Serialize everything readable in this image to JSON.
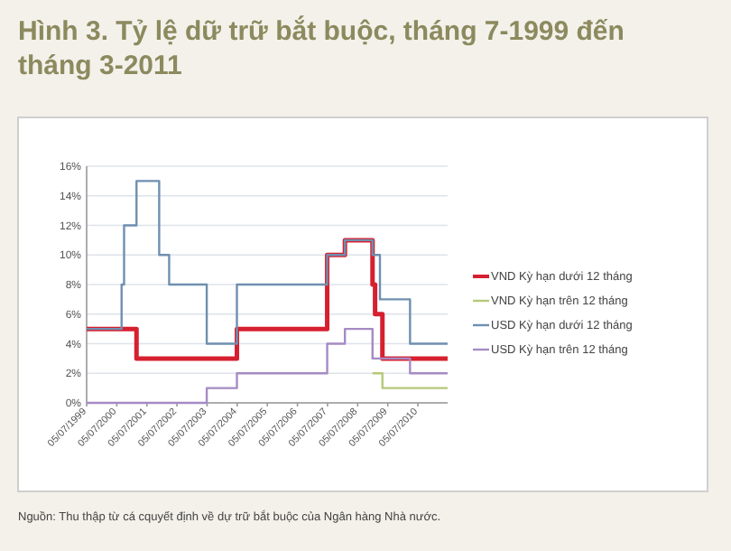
{
  "chart_data": {
    "type": "step",
    "title": "Hình 3. Tỷ lệ dữ trữ bắt buộc, tháng 7-1999  đến tháng 3-2011",
    "annotations": [
      "Nguồn: Thu thập từ cá cquyết định về dự trữ bắt buộc của Ngân hàng Nhà nước."
    ],
    "xlim": [
      "1999-07-05",
      "2011-07-01"
    ],
    "xticks": [
      {
        "value": "1999-07-05",
        "label": "05/07/1999"
      },
      {
        "value": "2000-07-05",
        "label": "05/07/2000"
      },
      {
        "value": "2001-07-05",
        "label": "05/07/2001"
      },
      {
        "value": "2002-07-05",
        "label": "05/07/2002"
      },
      {
        "value": "2003-07-05",
        "label": "05/07/2003"
      },
      {
        "value": "2004-07-05",
        "label": "05/07/2004"
      },
      {
        "value": "2005-07-05",
        "label": "05/07/2005"
      },
      {
        "value": "2006-07-05",
        "label": "05/07/2006"
      },
      {
        "value": "2007-07-05",
        "label": "05/07/2007"
      },
      {
        "value": "2008-07-05",
        "label": "05/07/2008"
      },
      {
        "value": "2009-07-05",
        "label": "05/07/2009"
      },
      {
        "value": "2010-07-05",
        "label": "05/07/2010"
      }
    ],
    "ylim": [
      0,
      16
    ],
    "yticks": [
      {
        "value": 0,
        "label": "0%"
      },
      {
        "value": 2,
        "label": "2%"
      },
      {
        "value": 4,
        "label": "4%"
      },
      {
        "value": 6,
        "label": "6%"
      },
      {
        "value": 8,
        "label": "8%"
      },
      {
        "value": 10,
        "label": "10%"
      },
      {
        "value": 12,
        "label": "12%"
      },
      {
        "value": 14,
        "label": "14%"
      },
      {
        "value": 16,
        "label": "16%"
      }
    ],
    "grid": "y",
    "legend": "right",
    "series": [
      {
        "name": "VND Kỳ hạn dưới 12 tháng",
        "color": "#d6202f",
        "x": [
          "1999-07-05",
          "2001-03",
          "2004-07",
          "2007-07",
          "2008-02",
          "2009-01",
          "2009-02",
          "2009-05",
          "2011-07"
        ],
        "values": [
          5,
          3,
          5,
          10,
          11,
          8,
          6,
          3,
          3
        ]
      },
      {
        "name": "VND Kỳ hạn trên 12 tháng",
        "color": "#b5c97a",
        "x": [
          "2009-01",
          "2009-05",
          "2011-07"
        ],
        "values": [
          2,
          1,
          1
        ]
      },
      {
        "name": "USD Kỳ hạn dưới 12 tháng",
        "color": "#6f8fb0",
        "x": [
          "1999-07-05",
          "2000-09",
          "2000-10",
          "2001-03",
          "2001-12",
          "2002-04",
          "2003-07",
          "2004-07",
          "2007-07",
          "2008-02",
          "2009-01",
          "2009-04",
          "2010-04",
          "2011-07"
        ],
        "values": [
          5,
          8,
          12,
          15,
          10,
          8,
          4,
          8,
          10,
          11,
          10,
          7,
          4,
          4
        ]
      },
      {
        "name": "USD Kỳ hạn trên 12 tháng",
        "color": "#a58bc4",
        "x": [
          "1999-07-05",
          "2003-07",
          "2004-07",
          "2007-07",
          "2008-02",
          "2009-01",
          "2010-04",
          "2011-07"
        ],
        "values": [
          0,
          1,
          2,
          4,
          5,
          3,
          2,
          2
        ]
      }
    ]
  }
}
